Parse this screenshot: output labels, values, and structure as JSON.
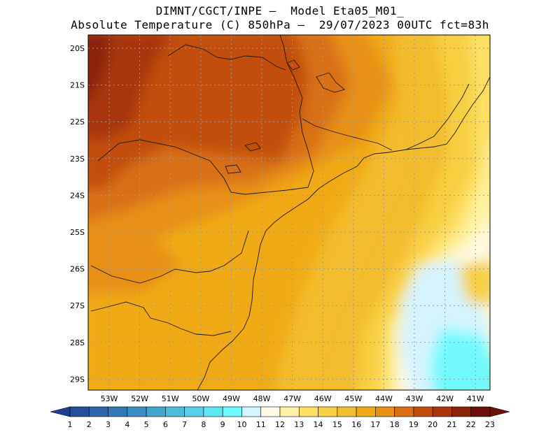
{
  "header": {
    "line1": "DIMNT/CGCT/INPE –  Model Eta05_M01_",
    "line2": "Absolute Temperature (C) 850hPa –  29/07/2023 00UTC fct=83h"
  },
  "map": {
    "lat_labels": [
      "20S",
      "21S",
      "22S",
      "23S",
      "24S",
      "25S",
      "26S",
      "27S",
      "28S",
      "29S"
    ],
    "lon_labels": [
      "53W",
      "52W",
      "51W",
      "50W",
      "49W",
      "48W",
      "47W",
      "46W",
      "45W",
      "44W",
      "43W",
      "42W",
      "41W"
    ]
  },
  "colorbar": {
    "labels": [
      "1",
      "2",
      "3",
      "4",
      "5",
      "6",
      "7",
      "8",
      "9",
      "10",
      "11",
      "12",
      "13",
      "14",
      "15",
      "16",
      "17",
      "18",
      "19",
      "20",
      "21",
      "22",
      "23"
    ],
    "colors": [
      "#1f3f8f",
      "#244f9a",
      "#2b66a8",
      "#3479b5",
      "#3b8fc4",
      "#44a5d2",
      "#4fbcde",
      "#58d0ec",
      "#5ce6f6",
      "#6ffaff",
      "#d4f4ff",
      "#fffbe6",
      "#fff2a6",
      "#ffe066",
      "#f7d043",
      "#f2bd2e",
      "#f0aa17",
      "#e89018",
      "#d96f12",
      "#c24e0c",
      "#a8360a",
      "#8a2308",
      "#6b1208"
    ]
  }
}
